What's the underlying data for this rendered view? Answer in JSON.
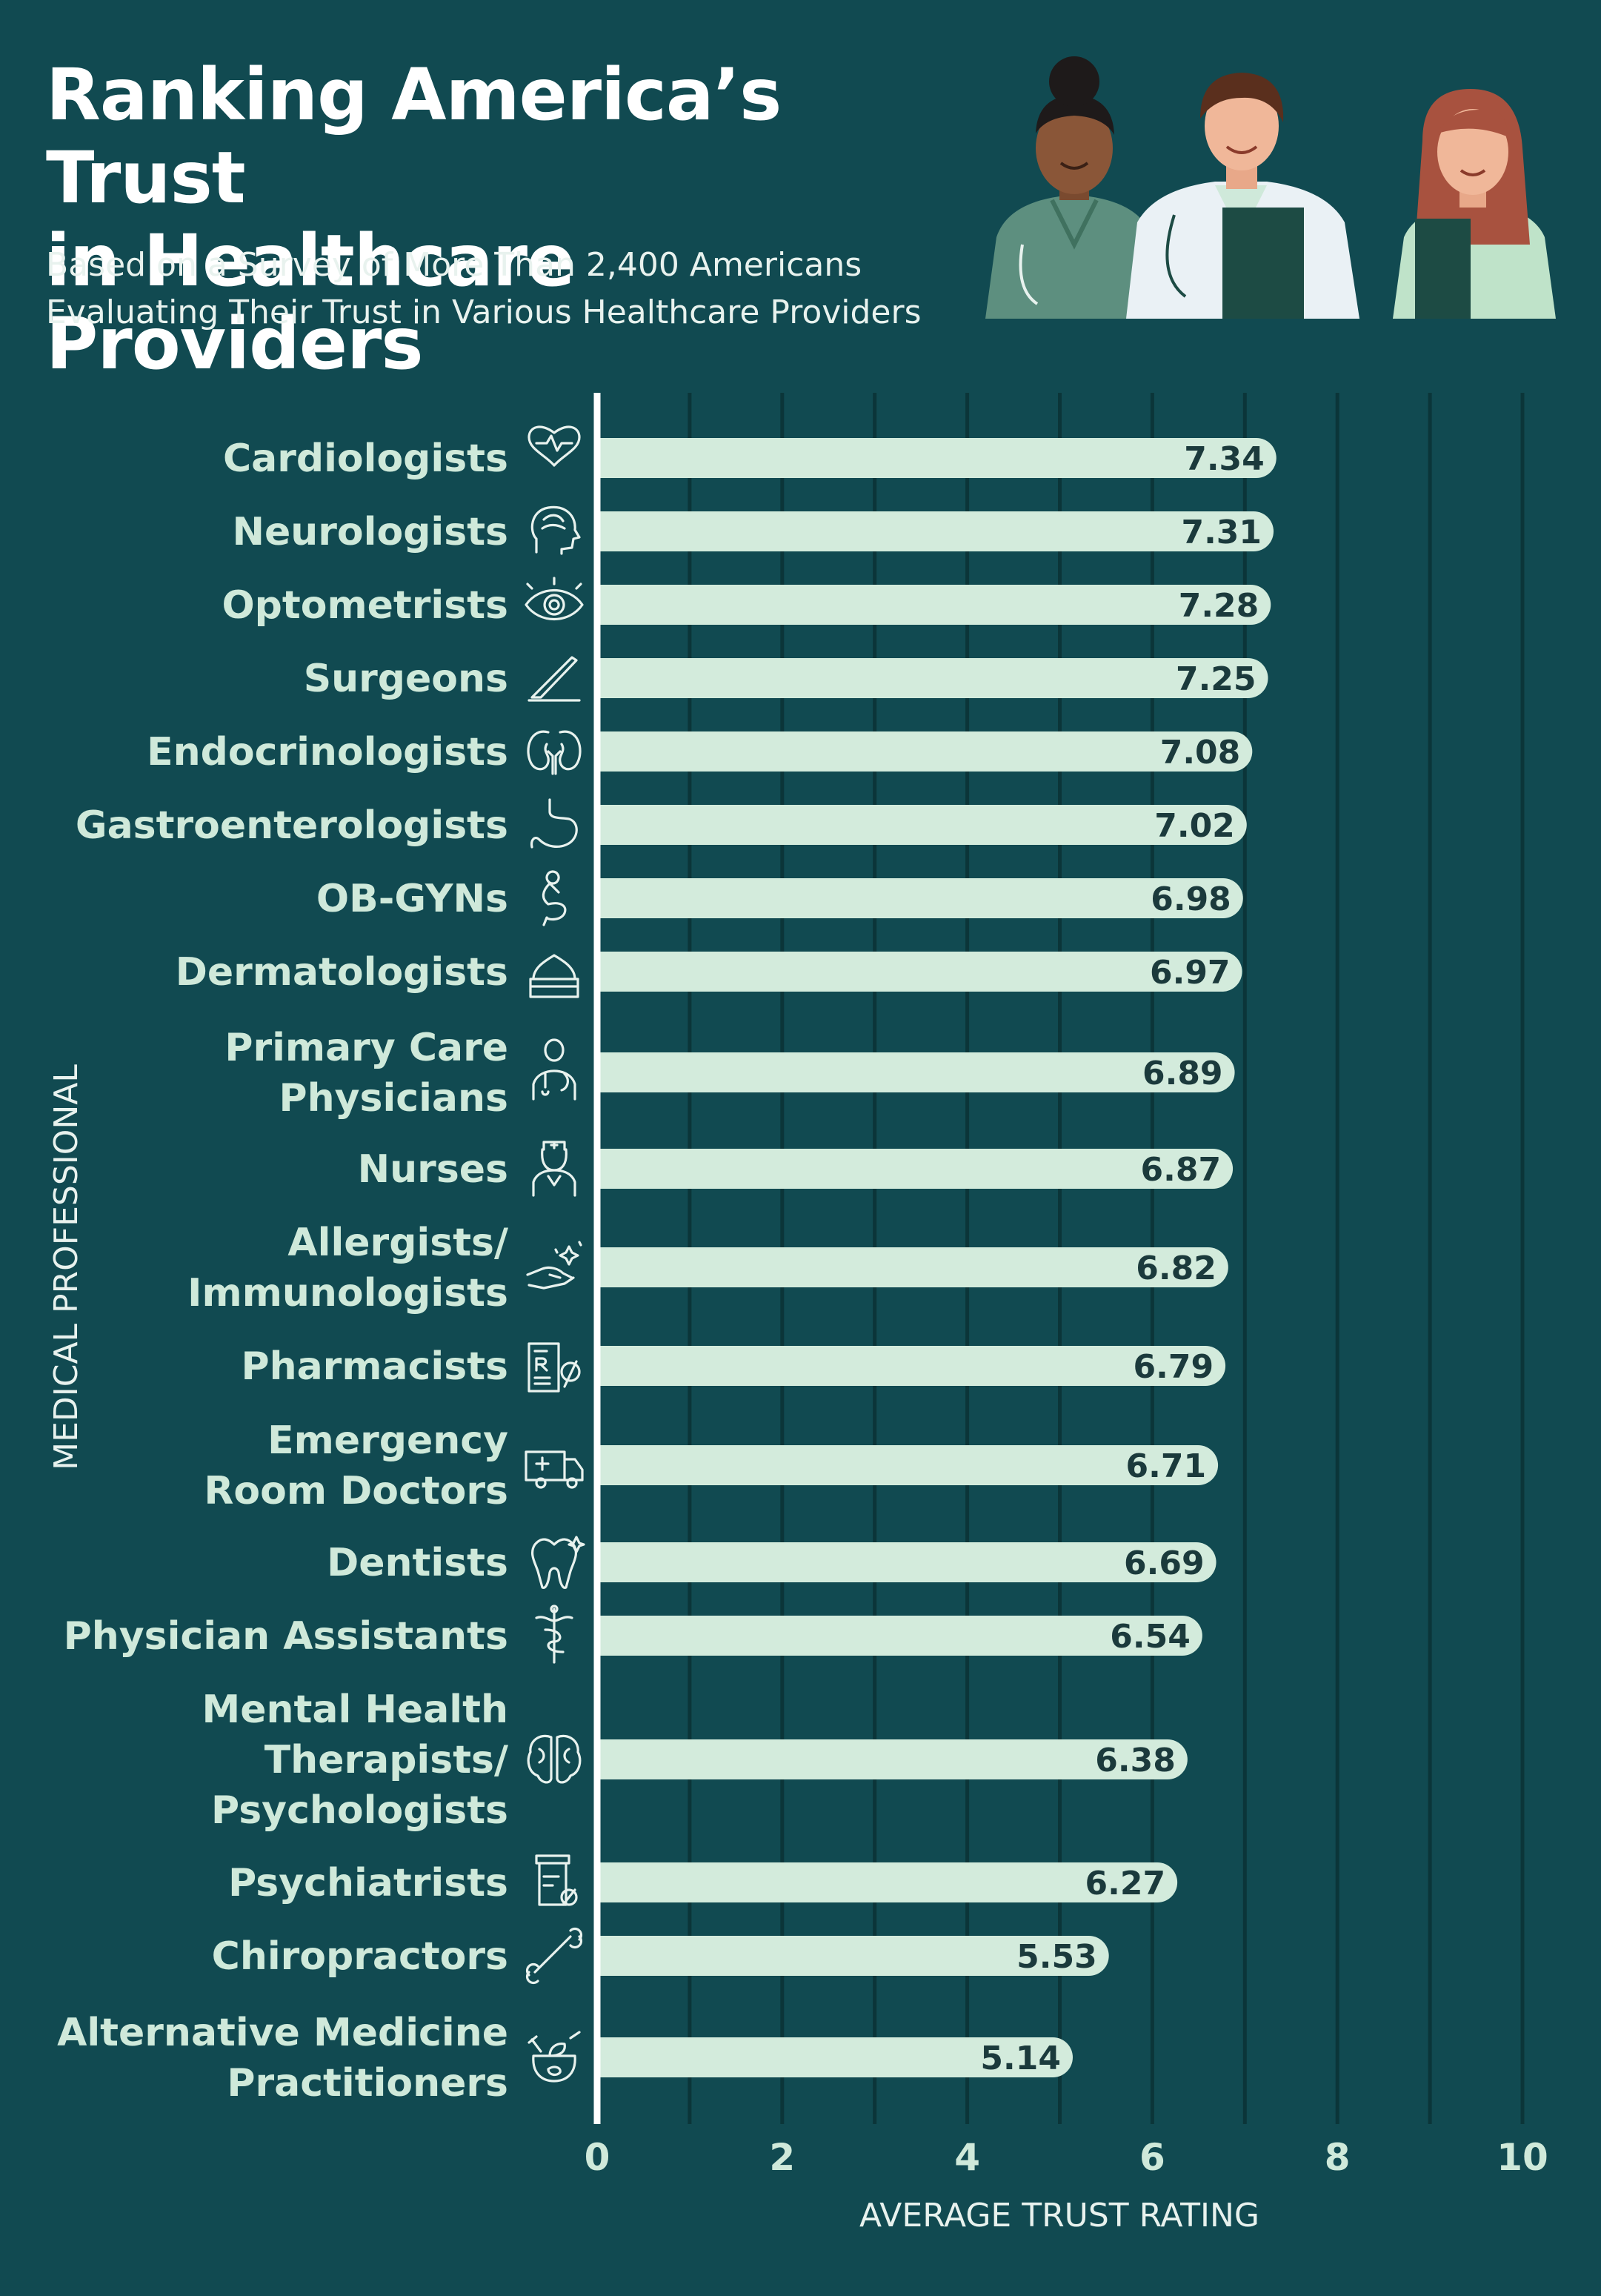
{
  "header": {
    "title_lines": [
      "Ranking America’s Trust",
      "in Healthcare Providers"
    ],
    "subtitle_lines": [
      "Based on a Survey of More Than 2,400 Americans",
      "Evaluating Their Trust in Various Healthcare Providers"
    ]
  },
  "colors": {
    "background": "#114a51",
    "bar": "#d3ebdc",
    "gridline": "#0b3539",
    "axis": "#ffffff",
    "label": "#cfe9da",
    "value_text": "#1b3a3c"
  },
  "chart_data": {
    "type": "bar",
    "orientation": "horizontal",
    "xlabel": "AVERAGE TRUST RATING",
    "ylabel": "MEDICAL PROFESSIONAL",
    "xlim": [
      0,
      10
    ],
    "xticks": [
      0,
      2,
      4,
      6,
      8,
      10
    ],
    "grid": "vertical lines every 1",
    "legend": "none",
    "categories": [
      {
        "label": [
          "Cardiologists"
        ],
        "value": 7.34,
        "icon": "heart-pulse-icon"
      },
      {
        "label": [
          "Neurologists"
        ],
        "value": 7.31,
        "icon": "head-brain-icon"
      },
      {
        "label": [
          "Optometrists"
        ],
        "value": 7.28,
        "icon": "eye-icon"
      },
      {
        "label": [
          "Surgeons"
        ],
        "value": 7.25,
        "icon": "scalpel-icon"
      },
      {
        "label": [
          "Endocrinologists"
        ],
        "value": 7.08,
        "icon": "kidneys-icon"
      },
      {
        "label": [
          "Gastroenterologists"
        ],
        "value": 7.02,
        "icon": "stomach-icon"
      },
      {
        "label": [
          "OB-GYNs"
        ],
        "value": 6.98,
        "icon": "pregnancy-icon"
      },
      {
        "label": [
          "Dermatologists"
        ],
        "value": 6.97,
        "icon": "cream-jar-icon"
      },
      {
        "label": [
          "Primary Care",
          "Physicians"
        ],
        "value": 6.89,
        "icon": "doctor-icon"
      },
      {
        "label": [
          "Nurses"
        ],
        "value": 6.87,
        "icon": "nurse-icon"
      },
      {
        "label": [
          "Allergists/",
          "Immunologists"
        ],
        "value": 6.82,
        "icon": "hand-sparkle-icon"
      },
      {
        "label": [
          "Pharmacists"
        ],
        "value": 6.79,
        "icon": "prescription-pills-icon"
      },
      {
        "label": [
          "Emergency",
          "Room Doctors"
        ],
        "value": 6.71,
        "icon": "ambulance-icon"
      },
      {
        "label": [
          "Dentists"
        ],
        "value": 6.69,
        "icon": "tooth-icon"
      },
      {
        "label": [
          "Physician Assistants"
        ],
        "value": 6.54,
        "icon": "caduceus-icon"
      },
      {
        "label": [
          "Mental Health",
          "Therapists/",
          "Psychologists"
        ],
        "value": 6.38,
        "icon": "brain-icon"
      },
      {
        "label": [
          "Psychiatrists"
        ],
        "value": 6.27,
        "icon": "pill-bottle-icon"
      },
      {
        "label": [
          "Chiropractors"
        ],
        "value": 5.53,
        "icon": "bone-icon"
      },
      {
        "label": [
          "Alternative Medicine",
          "Practitioners"
        ],
        "value": 5.14,
        "icon": "herbal-pot-icon"
      }
    ]
  }
}
